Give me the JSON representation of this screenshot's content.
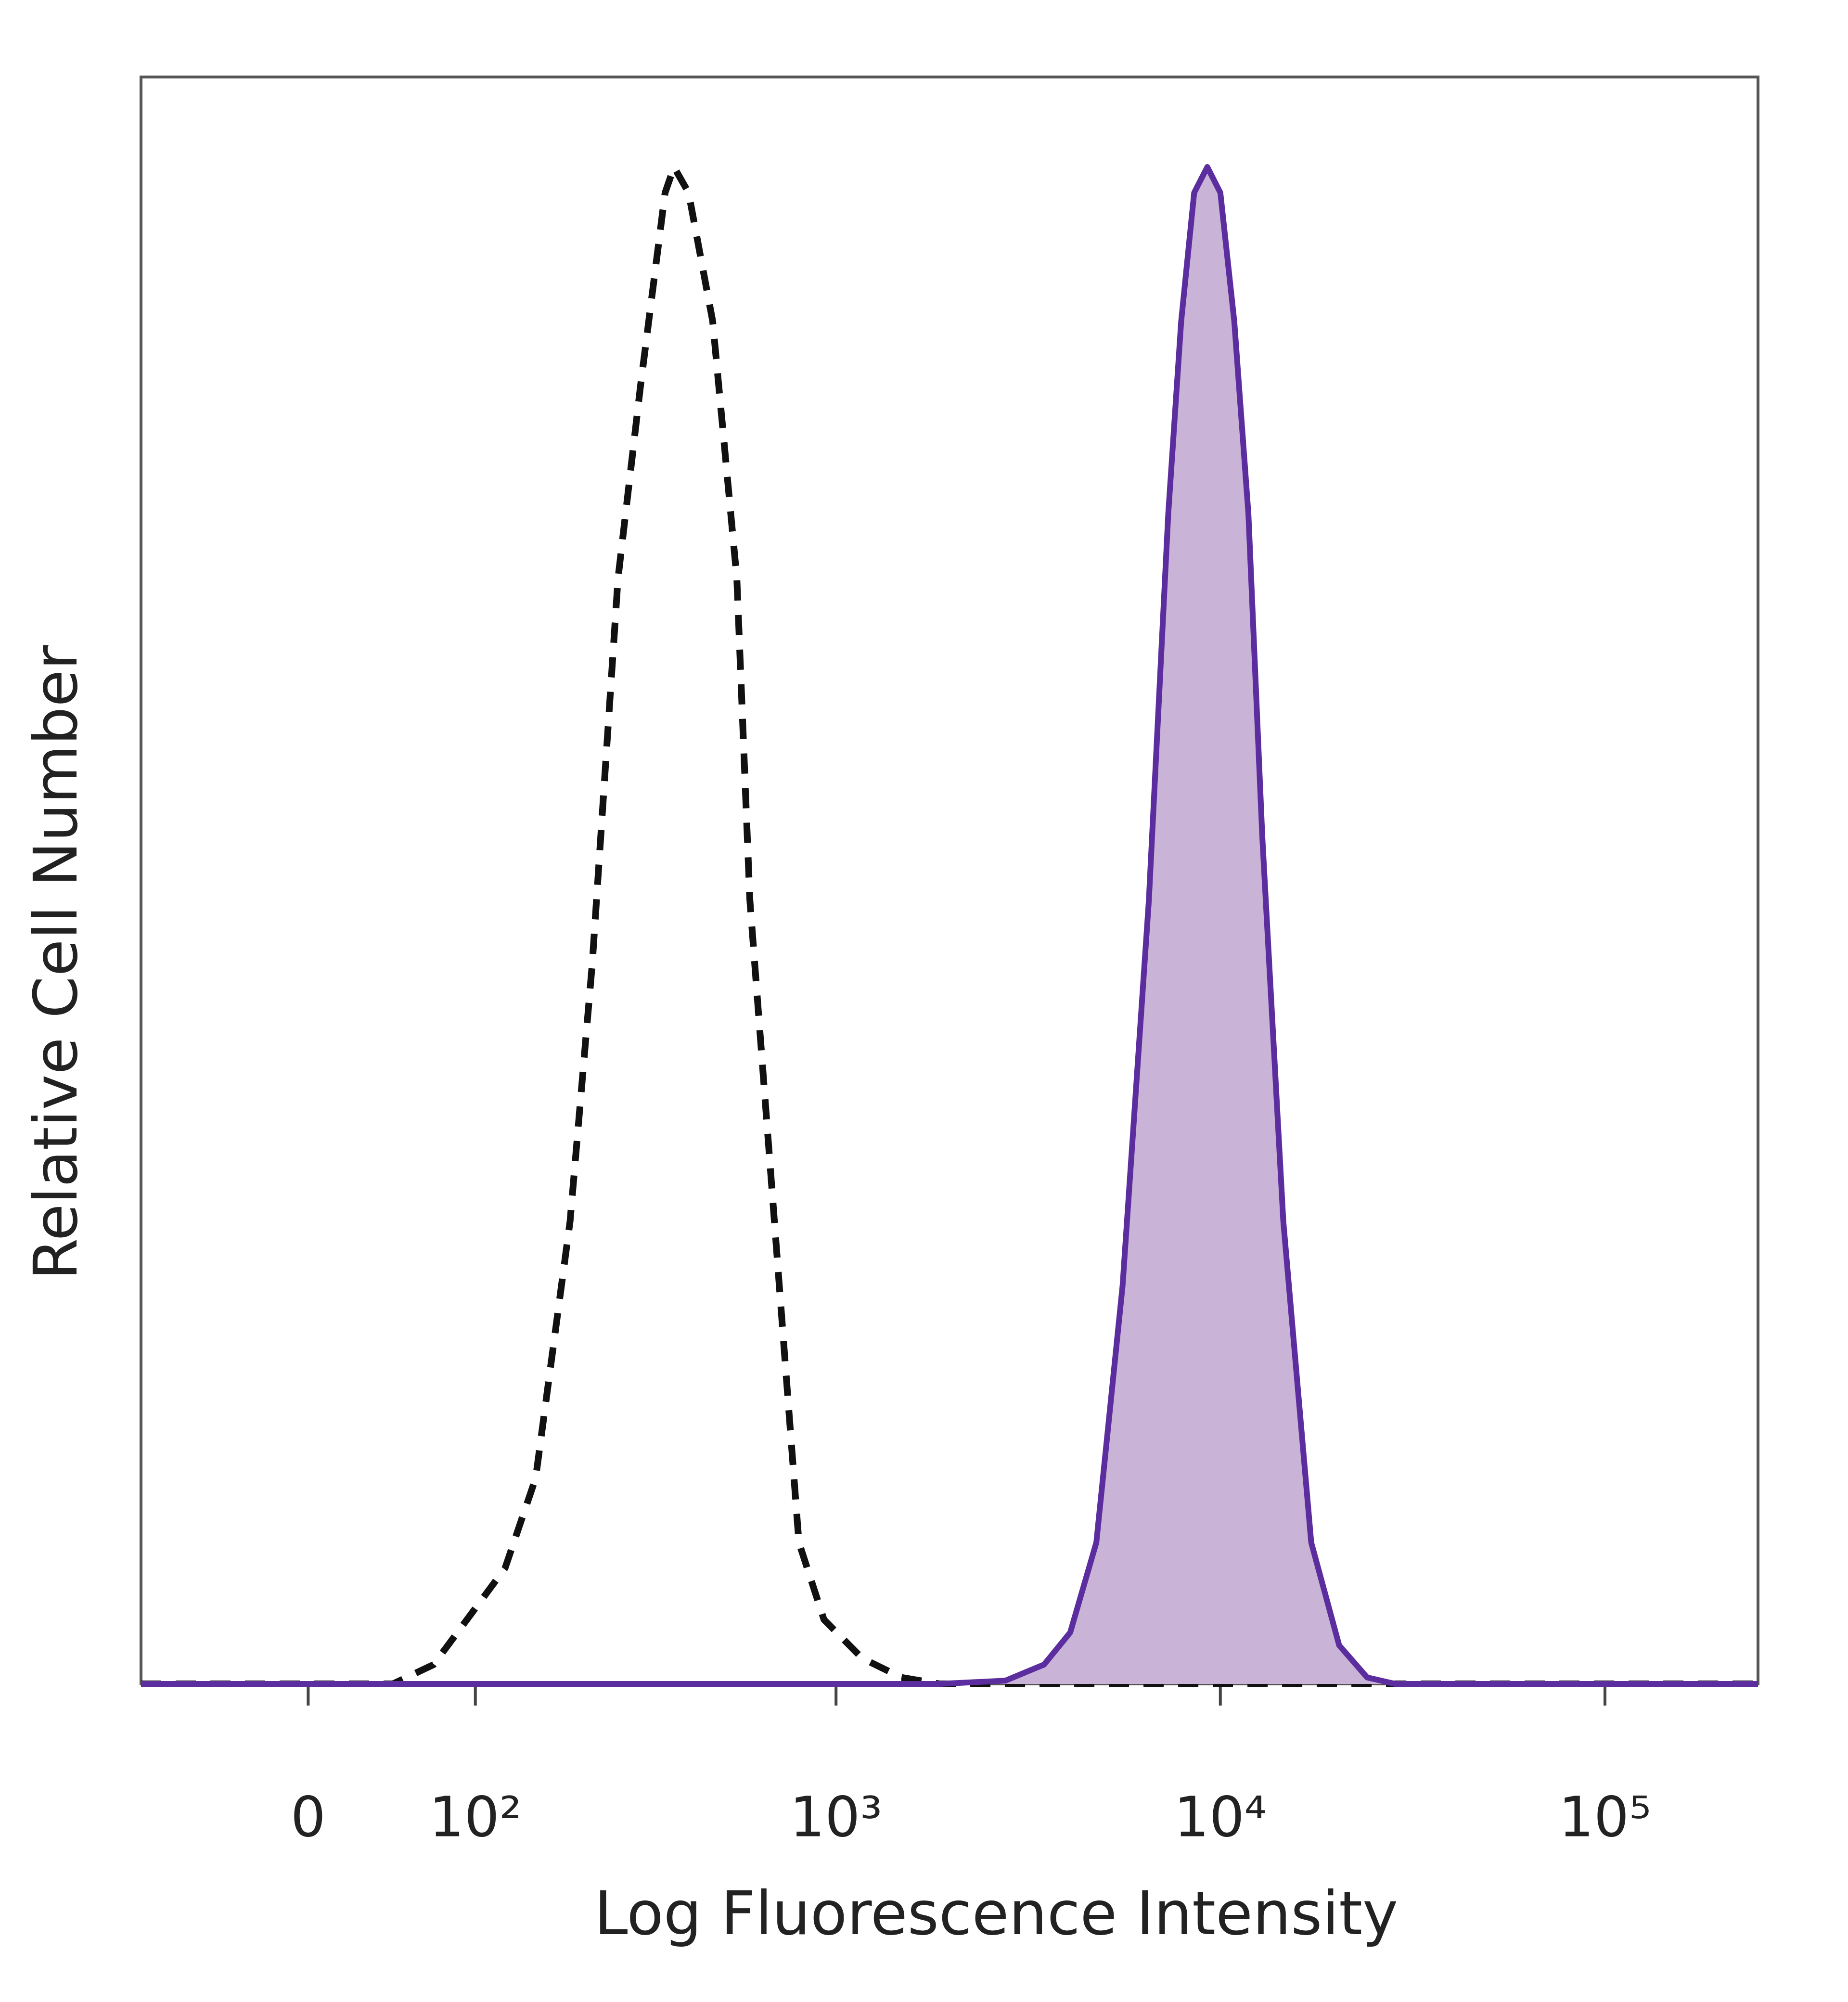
{
  "chart_data": {
    "type": "line",
    "xlabel": "Log Fluorescence Intensity",
    "ylabel": "Relative Cell Number",
    "xscale": "biexponential",
    "xlim": [
      -100,
      250000
    ],
    "xticks": [
      0,
      {
        "value": 100,
        "label": "10²"
      },
      {
        "value": 1000,
        "label": "10³"
      },
      {
        "value": 10000,
        "label": "10⁴"
      },
      {
        "value": 100000,
        "label": "10⁵"
      }
    ],
    "ylim": [
      0,
      100
    ],
    "x": [
      -100,
      0,
      45,
      70,
      125,
      155,
      195,
      225,
      265,
      305,
      355,
      375,
      410,
      475,
      550,
      595,
      690,
      800,
      930,
      1170,
      1480,
      1860,
      2760,
      3480,
      4070,
      4760,
      5570,
      6520,
      7320,
      7910,
      8550,
      9250,
      10000,
      10870,
      11830,
      12850,
      14580,
      17230,
      20370,
      24080,
      28480,
      60000,
      250000
    ],
    "series": [
      {
        "color": "#111111",
        "dashed": true,
        "values": [
          0,
          0,
          0,
          1.2,
          7.2,
          12.8,
          28.8,
          44.8,
          68.8,
          80.8,
          92.8,
          94.4,
          92.8,
          84.8,
          68.8,
          48.8,
          28.8,
          8.8,
          4,
          1.6,
          0.4,
          0,
          0,
          0,
          0,
          0,
          0,
          0,
          0,
          0,
          0,
          0,
          0,
          0,
          0,
          0,
          0,
          0,
          0,
          0,
          0,
          0,
          0
        ]
      },
      {
        "color": "#5b2d9e",
        "fill": "#c9b3d6",
        "dashed": false,
        "values": [
          0,
          0,
          0,
          0,
          0,
          0,
          0,
          0,
          0,
          0,
          0,
          0,
          0,
          0,
          0,
          0,
          0,
          0,
          0,
          0,
          0,
          0,
          0.2,
          1.2,
          3.2,
          8.8,
          24.8,
          48.8,
          72.8,
          84.8,
          92.8,
          94.4,
          92.8,
          84.8,
          72.8,
          52.8,
          28.8,
          8.8,
          2.4,
          0.4,
          0,
          0,
          0
        ]
      }
    ]
  }
}
